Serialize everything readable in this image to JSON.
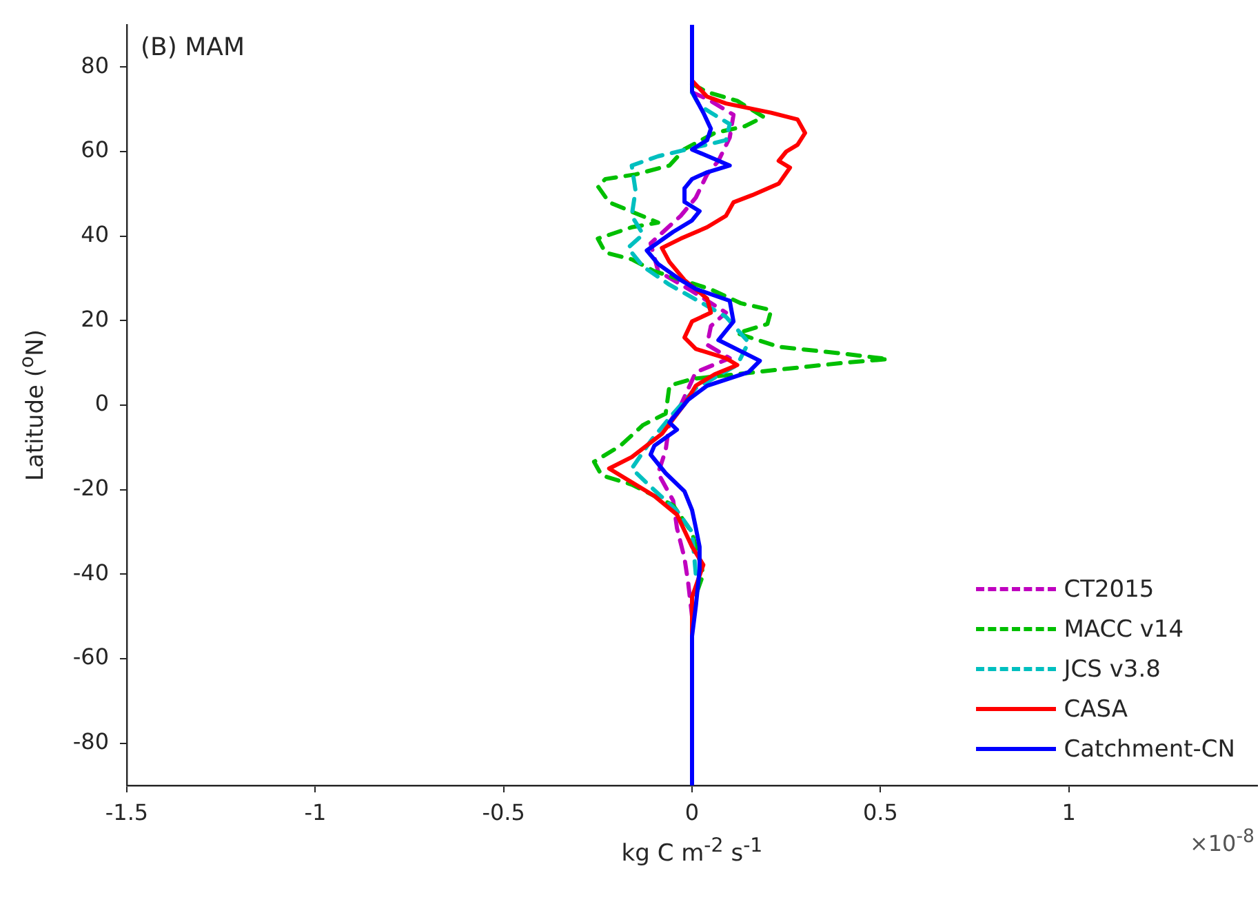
{
  "chart_data": {
    "type": "line",
    "orientation": "horizontal",
    "xlabel": "kg C m$^{-2}$ s$^{-1}$",
    "ylabel": "Latitude ($^{o}$N)",
    "annotations": [
      "(B) MAM",
      "×10$^{-8}$"
    ],
    "xlim": [
      -1.5,
      1.5
    ],
    "xticks": [
      -1.5,
      -1,
      -0.5,
      0,
      0.5,
      1
    ],
    "ylim": [
      -90,
      90
    ],
    "yticks": [
      -80,
      -60,
      -40,
      -20,
      0,
      20,
      40,
      60,
      80
    ],
    "legend": "bottom right",
    "marker": "none",
    "series": [
      {
        "name": "CT2015",
        "color": "#bf00bf",
        "line_style": "dashed",
        "x": [
          74,
          72.5,
          68.7,
          63.3,
          57.8,
          54.6,
          49.1,
          44.8,
          38.3,
          31.7,
          27,
          21.9,
          18.7,
          14.3,
          11.1,
          7.8,
          0,
          -4.1,
          -10.7,
          -16.1,
          -22.6,
          -29.1,
          -36.2,
          -42.2,
          -50
        ],
        "values": [
          0,
          0.04,
          0.11,
          0.1,
          0.07,
          0.04,
          0.01,
          -0.03,
          -0.11,
          -0.09,
          0,
          0.09,
          0.05,
          0.04,
          0.1,
          0.01,
          -0.03,
          -0.06,
          -0.07,
          -0.09,
          -0.05,
          -0.04,
          -0.02,
          -0.01,
          0
        ]
      },
      {
        "name": "MACC v14",
        "color": "#00bf00",
        "line_style": "dashed",
        "x": [
          76,
          74.1,
          72,
          68.2,
          66,
          64.4,
          60.6,
          56.7,
          54.6,
          53.5,
          51.8,
          48,
          43.2,
          42.1,
          39.4,
          36.1,
          34.5,
          31.7,
          27.4,
          24.1,
          22.5,
          19.2,
          17,
          13.8,
          12.2,
          10.9,
          10,
          8.4,
          6.2,
          4.6,
          -2,
          -4.7,
          -9.6,
          -13.4,
          -16.6,
          -18.8,
          -23.7,
          -30.2,
          -40,
          -45
        ],
        "values": [
          0,
          0.04,
          0.12,
          0.19,
          0.14,
          0.06,
          -0.02,
          -0.06,
          -0.15,
          -0.23,
          -0.25,
          -0.22,
          -0.09,
          -0.16,
          -0.25,
          -0.23,
          -0.16,
          -0.1,
          0.05,
          0.13,
          0.21,
          0.2,
          0.12,
          0.23,
          0.4,
          0.52,
          0.4,
          0.23,
          0,
          -0.06,
          -0.07,
          -0.13,
          -0.19,
          -0.26,
          -0.24,
          -0.16,
          -0.05,
          0,
          0.03,
          0.01
        ]
      },
      {
        "name": "JCS v3.8",
        "color": "#00bfbf",
        "line_style": "dashed",
        "x": [
          74,
          70.9,
          69.2,
          66.5,
          62.7,
          58.9,
          56.7,
          50.8,
          44.8,
          40.4,
          37.2,
          32.8,
          28.5,
          24,
          20.9,
          14.9,
          9.5,
          4,
          -2,
          -8.5,
          -15,
          -19.3,
          -25,
          -30,
          -40
        ],
        "values": [
          0,
          0.02,
          0.05,
          0.1,
          0.09,
          -0.09,
          -0.16,
          -0.15,
          -0.16,
          -0.13,
          -0.17,
          -0.13,
          -0.06,
          0.03,
          0.09,
          0.15,
          0.12,
          0.01,
          -0.05,
          -0.11,
          -0.16,
          -0.11,
          -0.04,
          0,
          0.01
        ]
      },
      {
        "name": "CASA",
        "color": "#ff0000",
        "line_style": "solid",
        "x": [
          78,
          76.8,
          73,
          71.4,
          69.2,
          67.6,
          64.4,
          61.6,
          60,
          57.8,
          56.2,
          52.4,
          49.7,
          48,
          44.8,
          42.1,
          39.4,
          37.2,
          33.9,
          29.6,
          25.2,
          21.9,
          19.8,
          16,
          13.3,
          11.1,
          9.5,
          7.3,
          4.6,
          0.2,
          -6.8,
          -12.3,
          -15,
          -17.7,
          -21.5,
          -25.9,
          -33.5,
          -37.8,
          -45.4,
          -55
        ],
        "values": [
          0,
          0,
          0.04,
          0.09,
          0.21,
          0.28,
          0.3,
          0.28,
          0.25,
          0.23,
          0.26,
          0.23,
          0.16,
          0.11,
          0.09,
          0.04,
          -0.03,
          -0.08,
          -0.06,
          -0.02,
          0.04,
          0.05,
          0,
          -0.02,
          0.01,
          0.09,
          0.12,
          0.06,
          0.01,
          -0.02,
          -0.08,
          -0.16,
          -0.22,
          -0.17,
          -0.1,
          -0.04,
          0,
          0.03,
          0,
          0
        ]
      },
      {
        "name": "Catchment-CN",
        "color": "#0000ff",
        "line_style": "solid",
        "x": [
          90,
          74.3,
          72.5,
          69.2,
          65.4,
          62.7,
          60.5,
          56.7,
          55.1,
          53.5,
          51.3,
          48.1,
          45.9,
          43.7,
          41,
          36.6,
          33.4,
          29.6,
          27.5,
          24.7,
          19.8,
          15.4,
          10.5,
          7.8,
          4.6,
          1.3,
          -4.1,
          -5.8,
          -9.6,
          -11.7,
          -16.1,
          -20.4,
          -24.8,
          -29,
          -33.5,
          -38.9,
          -47.6,
          -54.7,
          -90
        ],
        "values": [
          0,
          0,
          0.01,
          0.03,
          0.05,
          0.04,
          0,
          0.1,
          0.04,
          0,
          -0.02,
          -0.02,
          0.02,
          0,
          -0.05,
          -0.12,
          -0.09,
          -0.03,
          0.01,
          0.1,
          0.11,
          0.07,
          0.18,
          0.15,
          0.04,
          -0.01,
          -0.06,
          -0.04,
          -0.1,
          -0.11,
          -0.07,
          -0.02,
          0,
          0.01,
          0.02,
          0.02,
          0.01,
          0,
          0
        ]
      }
    ]
  }
}
